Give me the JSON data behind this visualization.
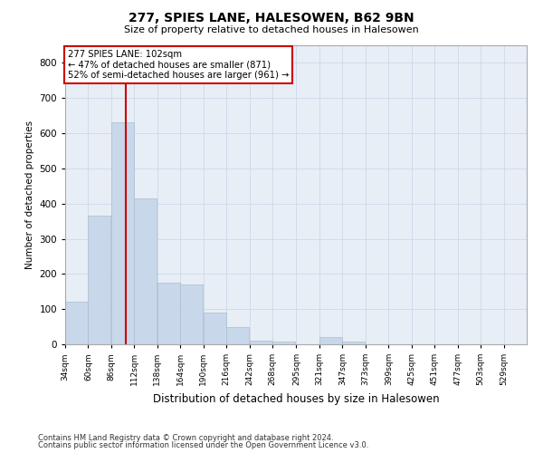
{
  "title": "277, SPIES LANE, HALESOWEN, B62 9BN",
  "subtitle": "Size of property relative to detached houses in Halesowen",
  "xlabel": "Distribution of detached houses by size in Halesowen",
  "ylabel": "Number of detached properties",
  "bar_color": "#c8d8ea",
  "bar_edge_color": "#a8bece",
  "vline_x": 102,
  "vline_color": "#cc0000",
  "annotation_line1": "277 SPIES LANE: 102sqm",
  "annotation_line2": "← 47% of detached houses are smaller (871)",
  "annotation_line3": "52% of semi-detached houses are larger (961) →",
  "bins": [
    34,
    60,
    86,
    112,
    138,
    164,
    190,
    216,
    242,
    268,
    295,
    321,
    347,
    373,
    399,
    425,
    451,
    477,
    503,
    529,
    555
  ],
  "counts": [
    120,
    365,
    630,
    415,
    175,
    170,
    90,
    50,
    10,
    7,
    0,
    20,
    8,
    1,
    0,
    0,
    0,
    0,
    0,
    0
  ],
  "ylim": [
    0,
    850
  ],
  "yticks": [
    0,
    100,
    200,
    300,
    400,
    500,
    600,
    700,
    800
  ],
  "footnote1": "Contains HM Land Registry data © Crown copyright and database right 2024.",
  "footnote2": "Contains public sector information licensed under the Open Government Licence v3.0.",
  "grid_color": "#cdd8e8",
  "background_color": "#e8eef6"
}
